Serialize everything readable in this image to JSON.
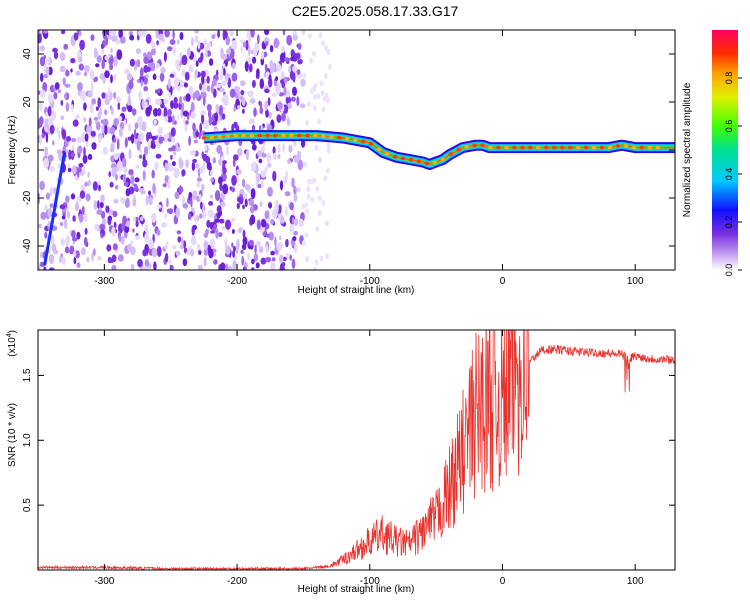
{
  "title": "C2E5.2025.058.17.33.G17",
  "chart_data": [
    {
      "type": "heatmap",
      "xlabel": "Height of straight line (km)",
      "ylabel": "Frequency (Hz)",
      "xlim": [
        -350,
        130
      ],
      "ylim": [
        -50,
        50
      ],
      "x_ticks": [
        -300,
        -200,
        -100,
        0,
        100
      ],
      "y_ticks": [
        -40,
        -20,
        0,
        20,
        40
      ],
      "colorbar": {
        "label": "Normalized spectral amplitude",
        "range": [
          0,
          1
        ],
        "ticks": [
          "0.0",
          "0.2",
          "0.4",
          "0.6",
          "0.8"
        ]
      },
      "ridge": {
        "name": "",
        "x": [
          -225,
          -200,
          -150,
          -140,
          -120,
          -100,
          -90,
          -80,
          -70,
          -60,
          -55,
          -50,
          -45,
          -40,
          -30,
          -20,
          -15,
          -10,
          0,
          20,
          50,
          80,
          90,
          100,
          130
        ],
        "y": [
          5,
          6,
          6,
          6,
          5,
          3,
          -1,
          -3,
          -4,
          -5,
          -6,
          -5,
          -4,
          -2,
          1,
          2,
          2,
          1,
          1,
          1,
          1,
          1,
          2,
          1,
          1
        ]
      },
      "noise_region": {
        "x_range": [
          -350,
          -150
        ],
        "y_range": [
          -50,
          50
        ]
      },
      "steep_streak": {
        "x": [
          -345,
          -330
        ],
        "y": [
          -48,
          -1
        ]
      }
    },
    {
      "type": "line",
      "xlabel": "Height of straight line (km)",
      "ylabel": "SNR (10 * v/v)",
      "y_scale_label": "(x10",
      "y_scale_exp": "4",
      "xlim": [
        -350,
        130
      ],
      "ylim": [
        0,
        1.85
      ],
      "x_ticks": [
        -300,
        -200,
        -100,
        0,
        100
      ],
      "y_ticks": [
        "0.5",
        "1.0",
        "1.5"
      ],
      "series": [
        {
          "name": "",
          "color": "#e8322d",
          "x": [
            -350,
            -300,
            -250,
            -200,
            -150,
            -130,
            -120,
            -110,
            -100,
            -90,
            -80,
            -70,
            -60,
            -50,
            -40,
            -30,
            -20,
            -10,
            0,
            10,
            20,
            30,
            40,
            60,
            80,
            90,
            95,
            100,
            110,
            130
          ],
          "y": [
            0.02,
            0.02,
            0.01,
            0.01,
            0.01,
            0.03,
            0.08,
            0.15,
            0.22,
            0.28,
            0.22,
            0.2,
            0.3,
            0.4,
            0.62,
            0.9,
            1.2,
            1.35,
            1.3,
            1.55,
            1.6,
            1.7,
            1.7,
            1.68,
            1.67,
            1.66,
            1.63,
            1.65,
            1.63,
            1.62
          ]
        }
      ]
    }
  ]
}
